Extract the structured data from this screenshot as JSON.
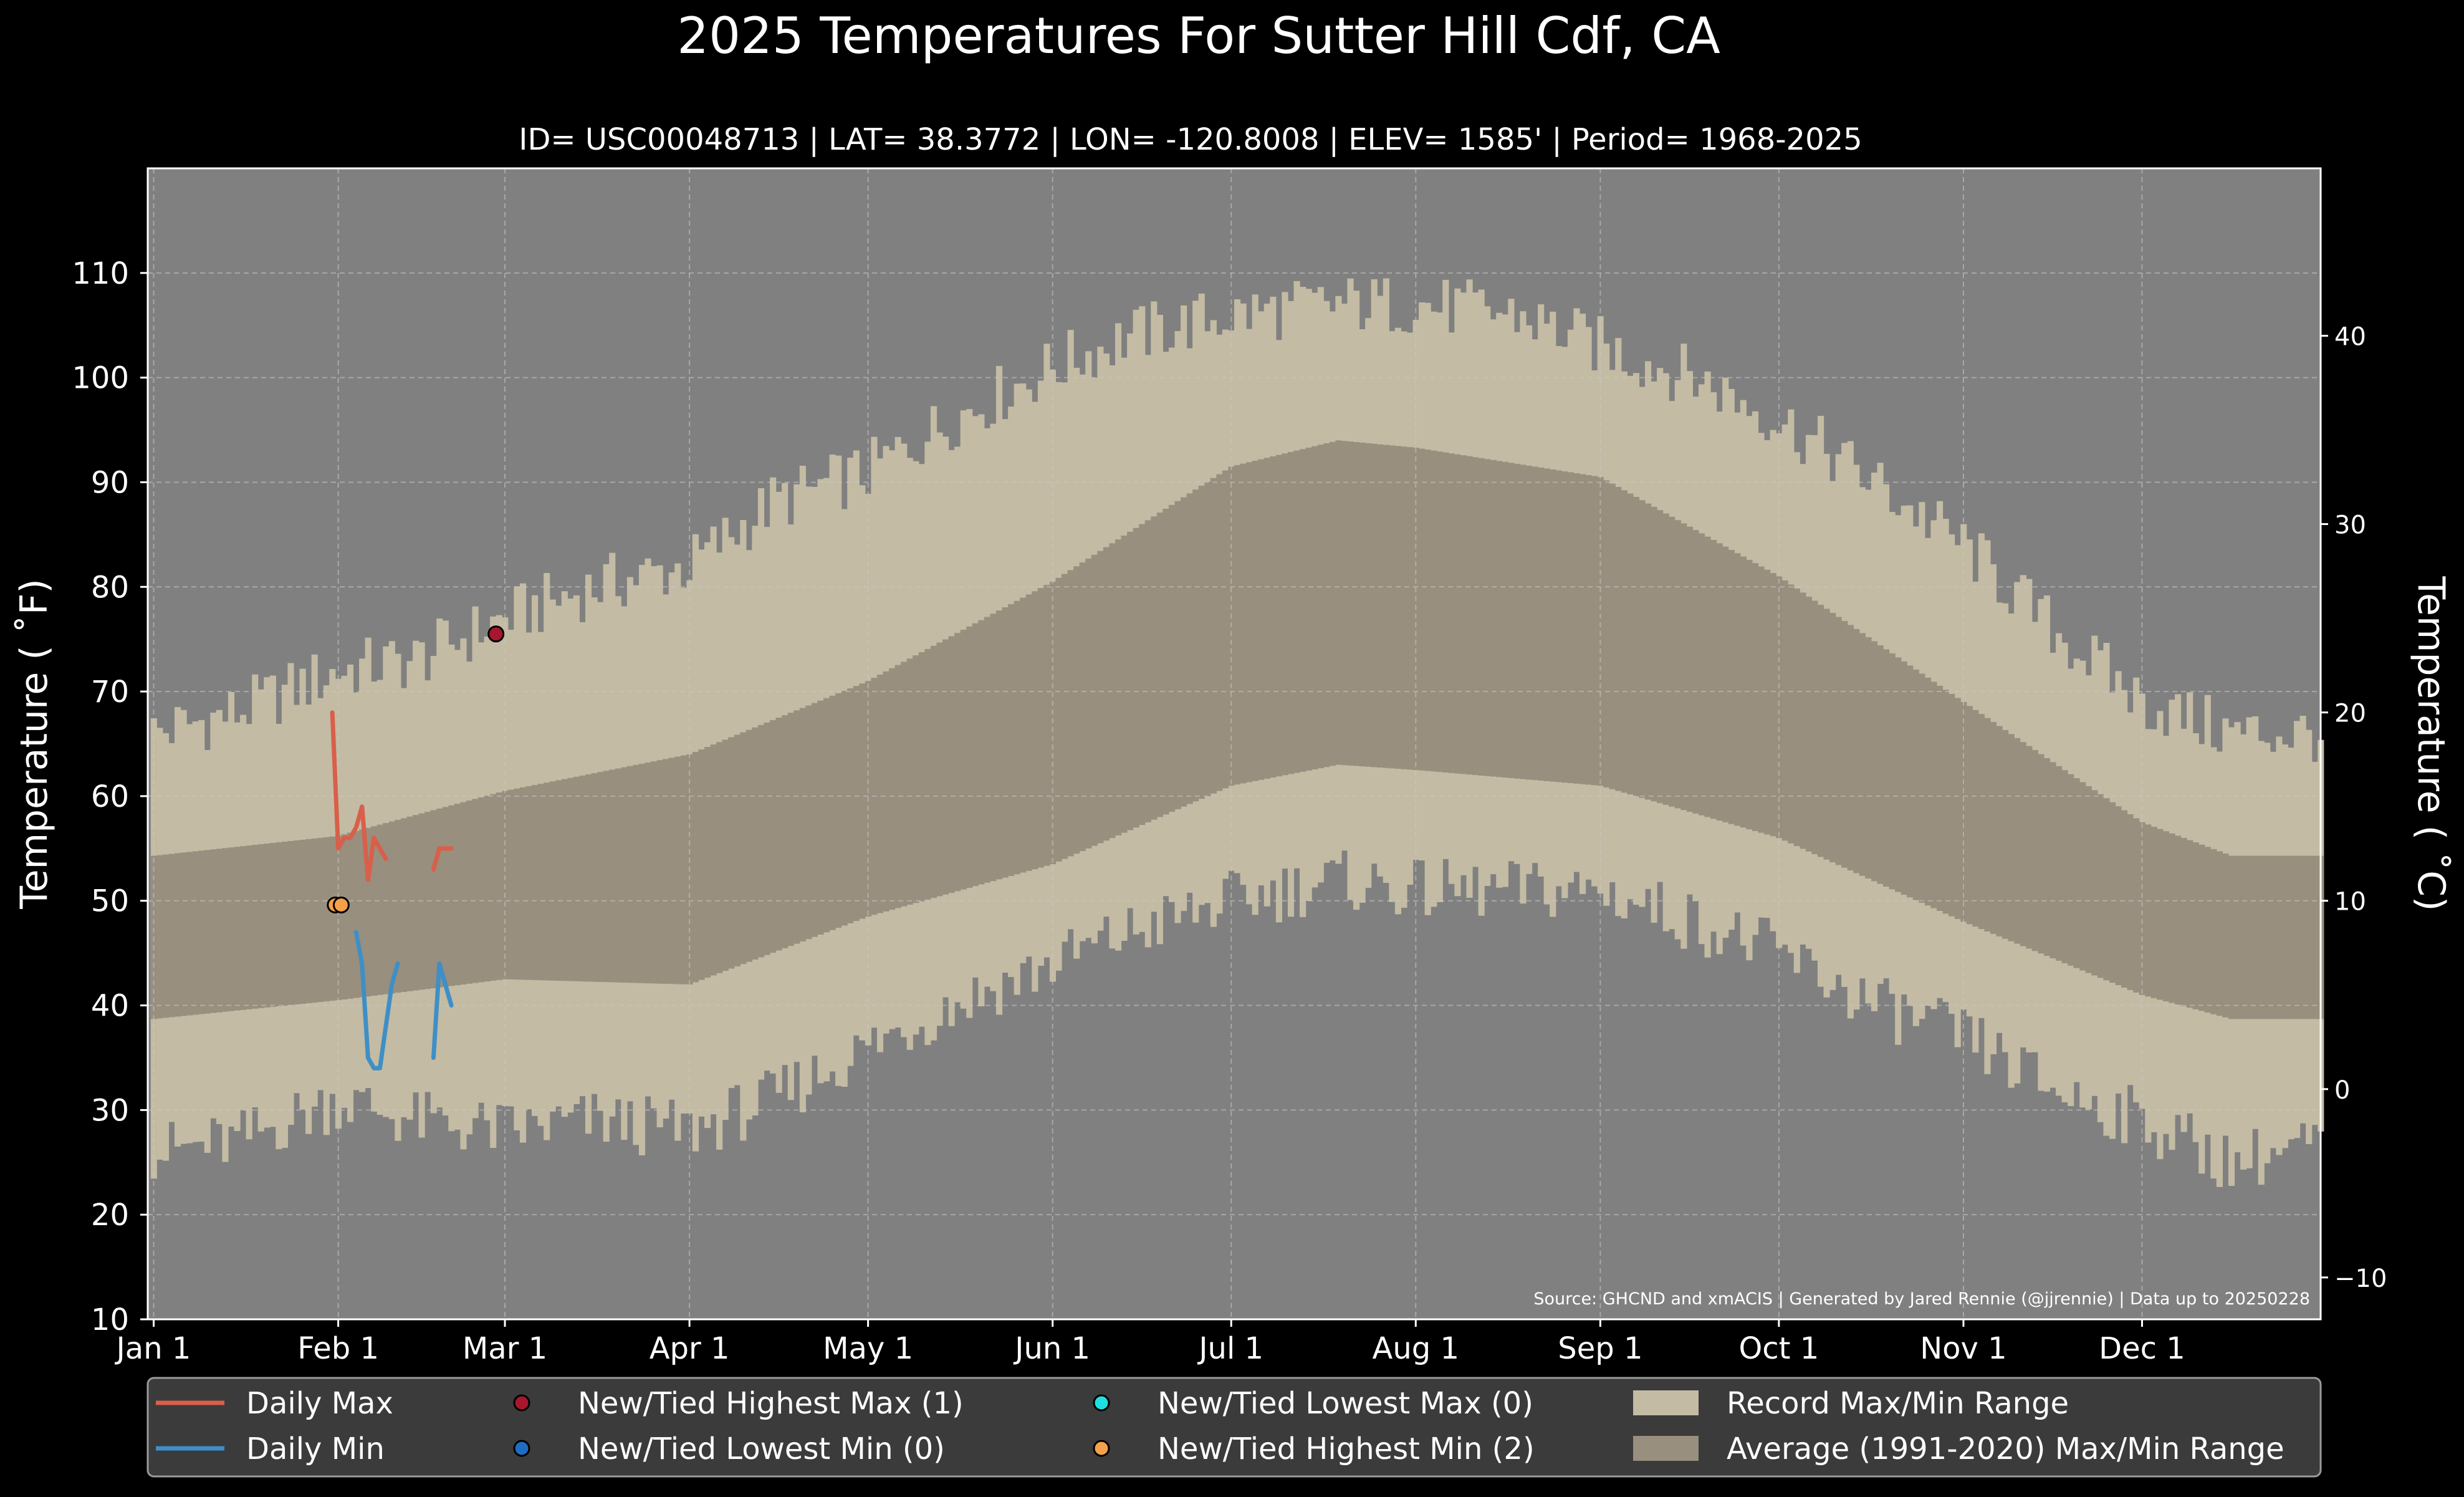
{
  "chart_data": {
    "type": "area",
    "title": "2025 Temperatures For Sutter Hill Cdf, CA",
    "subtitle": "ID= USC00048713 | LAT= 38.3772 | LON= -120.8008 | ELEV= 1585' | Period= 1968-2025",
    "ylabel": "Temperature ( ˚F)",
    "ylabel_right": "Temperature ( ˚C)",
    "ylim": [
      10,
      120
    ],
    "y_ticks": [
      10,
      20,
      30,
      40,
      50,
      60,
      70,
      80,
      90,
      100,
      110
    ],
    "y_right_ticks": [
      -10,
      0,
      10,
      20,
      30,
      40
    ],
    "x_day_range": [
      0,
      365
    ],
    "x_ticks": [
      {
        "label": "Jan 1",
        "day": 1
      },
      {
        "label": "Feb 1",
        "day": 32
      },
      {
        "label": "Mar 1",
        "day": 60
      },
      {
        "label": "Apr 1",
        "day": 91
      },
      {
        "label": "May 1",
        "day": 121
      },
      {
        "label": "Jun 1",
        "day": 152
      },
      {
        "label": "Jul 1",
        "day": 182
      },
      {
        "label": "Aug 1",
        "day": 213
      },
      {
        "label": "Sep 1",
        "day": 244
      },
      {
        "label": "Oct 1",
        "day": 274
      },
      {
        "label": "Nov 1",
        "day": 305
      },
      {
        "label": "Dec 1",
        "day": 335
      }
    ],
    "grid": true,
    "legend_position": "bottom",
    "record_range": {
      "name": "Record Max/Min Range",
      "max_anchors": [
        [
          1,
          66
        ],
        [
          15,
          68
        ],
        [
          32,
          72
        ],
        [
          45,
          73
        ],
        [
          60,
          77
        ],
        [
          75,
          80
        ],
        [
          91,
          82
        ],
        [
          105,
          88
        ],
        [
          121,
          91
        ],
        [
          135,
          96
        ],
        [
          152,
          101
        ],
        [
          165,
          104
        ],
        [
          182,
          106
        ],
        [
          200,
          107
        ],
        [
          213,
          107
        ],
        [
          230,
          106
        ],
        [
          244,
          103
        ],
        [
          260,
          100
        ],
        [
          274,
          96
        ],
        [
          290,
          90
        ],
        [
          305,
          84
        ],
        [
          320,
          76
        ],
        [
          335,
          69
        ],
        [
          350,
          66
        ],
        [
          366,
          66
        ]
      ],
      "min_anchors": [
        [
          1,
          26
        ],
        [
          15,
          27
        ],
        [
          32,
          31
        ],
        [
          45,
          29
        ],
        [
          60,
          28
        ],
        [
          75,
          29
        ],
        [
          91,
          28
        ],
        [
          105,
          31
        ],
        [
          121,
          36
        ],
        [
          135,
          40
        ],
        [
          152,
          44
        ],
        [
          165,
          47
        ],
        [
          182,
          50
        ],
        [
          200,
          52
        ],
        [
          213,
          51
        ],
        [
          230,
          51
        ],
        [
          244,
          51
        ],
        [
          260,
          48
        ],
        [
          274,
          45
        ],
        [
          290,
          40
        ],
        [
          305,
          37
        ],
        [
          320,
          32
        ],
        [
          335,
          29
        ],
        [
          350,
          25
        ],
        [
          366,
          27
        ]
      ]
    },
    "normal_range": {
      "name": "Average (1991-2020) Max/Min Range",
      "max_anchors": [
        [
          1,
          54.3
        ],
        [
          32,
          56.2
        ],
        [
          60,
          60.5
        ],
        [
          91,
          64
        ],
        [
          121,
          71
        ],
        [
          152,
          80.5
        ],
        [
          182,
          91.5
        ],
        [
          200,
          94
        ],
        [
          213,
          93.3
        ],
        [
          244,
          90.5
        ],
        [
          274,
          81
        ],
        [
          305,
          69
        ],
        [
          335,
          57.5
        ],
        [
          350,
          54.3
        ],
        [
          366,
          54.3
        ]
      ],
      "min_anchors": [
        [
          1,
          38.7
        ],
        [
          32,
          40.5
        ],
        [
          60,
          42.5
        ],
        [
          91,
          42
        ],
        [
          121,
          48.5
        ],
        [
          152,
          53.5
        ],
        [
          182,
          61
        ],
        [
          200,
          63
        ],
        [
          213,
          62.5
        ],
        [
          244,
          61
        ],
        [
          274,
          56
        ],
        [
          305,
          48
        ],
        [
          335,
          41
        ],
        [
          350,
          38.7
        ],
        [
          366,
          38.7
        ]
      ]
    },
    "series": [
      {
        "name": "Daily Max",
        "color": "#d95f4a",
        "x": [
          31,
          32,
          33,
          34,
          35,
          36,
          37,
          38,
          39,
          40,
          41,
          42,
          43,
          48,
          49,
          50,
          51
        ],
        "y": [
          68,
          55,
          56,
          56,
          57,
          59,
          52,
          56,
          55,
          54,
          null,
          null,
          null,
          53,
          55,
          55,
          55
        ]
      },
      {
        "name": "Daily Min",
        "color": "#3f8fc6",
        "x": [
          35,
          36,
          37,
          38,
          39,
          40,
          41,
          42,
          43,
          48,
          49,
          50,
          51
        ],
        "y": [
          47,
          44,
          35,
          34,
          34,
          38,
          42,
          44,
          null,
          35,
          44,
          42,
          40
        ]
      }
    ],
    "markers": [
      {
        "name": "New/Tied Highest Max (1)",
        "color": "#a6172d",
        "points": [
          [
            58.5,
            75.5
          ]
        ]
      },
      {
        "name": "New/Tied Lowest Min (0)",
        "color": "#1f6cc4",
        "points": []
      },
      {
        "name": "New/Tied Lowest Max (0)",
        "color": "#1fe0e0",
        "points": []
      },
      {
        "name": "New/Tied Highest Min (2)",
        "color": "#f5a04a",
        "points": [
          [
            31.5,
            49.6
          ],
          [
            32.5,
            49.6
          ]
        ]
      }
    ],
    "legend": [
      {
        "kind": "line",
        "label": "Daily Max",
        "color": "#d95f4a"
      },
      {
        "kind": "line",
        "label": "Daily Min",
        "color": "#3f8fc6"
      },
      {
        "kind": "marker",
        "label": "New/Tied Highest Max (1)",
        "color": "#a6172d"
      },
      {
        "kind": "marker",
        "label": "New/Tied Lowest Min (0)",
        "color": "#1f6cc4"
      },
      {
        "kind": "marker",
        "label": "New/Tied Lowest Max (0)",
        "color": "#1fe0e0"
      },
      {
        "kind": "marker",
        "label": "New/Tied Highest Min (2)",
        "color": "#f5a04a"
      },
      {
        "kind": "patch",
        "label": "Record Max/Min Range",
        "color": "#c3bba3"
      },
      {
        "kind": "patch",
        "label": "Average (1991-2020) Max/Min Range",
        "color": "#988f7e"
      }
    ],
    "source_note": "Source: GHCND and xmACIS | Generated by Jared Rennie (@jjrennie) | Data up to 20250228",
    "colors": {
      "background": "#000000",
      "plot_bg": "#808080",
      "record": "#c3bba3",
      "normal": "#988f7e",
      "legend_bg": "#3b3b3b"
    }
  }
}
